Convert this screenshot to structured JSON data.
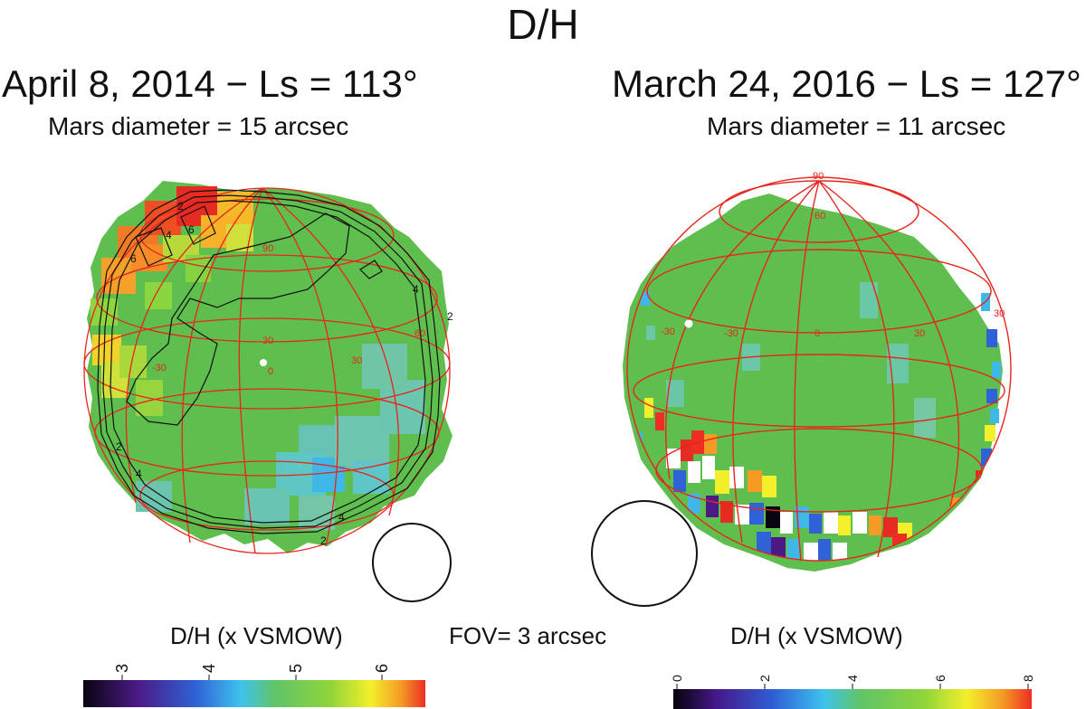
{
  "title": "D/H",
  "panels": [
    {
      "date_label": "April 8, 2014 − Ls = 113°",
      "diameter_label": "Mars diameter = 15 arcsec",
      "colorbar_label": "D/H (x VSMOW)",
      "colorbar_ticks": [
        "3",
        "4",
        "5",
        "6"
      ],
      "contour_labels": [
        "2",
        "4",
        "6"
      ],
      "grid_labels": [
        "-30",
        "0",
        "30",
        "60",
        "90"
      ]
    },
    {
      "date_label": "March 24, 2016 − Ls = 127°",
      "diameter_label": "Mars diameter = 11 arcsec",
      "colorbar_label": "D/H (x VSMOW)",
      "colorbar_ticks": [
        "0",
        "2",
        "4",
        "6",
        "8"
      ],
      "grid_labels": [
        "-30",
        "0",
        "30",
        "60",
        "90"
      ]
    }
  ],
  "fov_label": "FOV= 3 arcsec",
  "colors": {
    "background_green": "#5fbf4e",
    "grid_red": "#e8241c",
    "contour_black": "#111111"
  }
}
